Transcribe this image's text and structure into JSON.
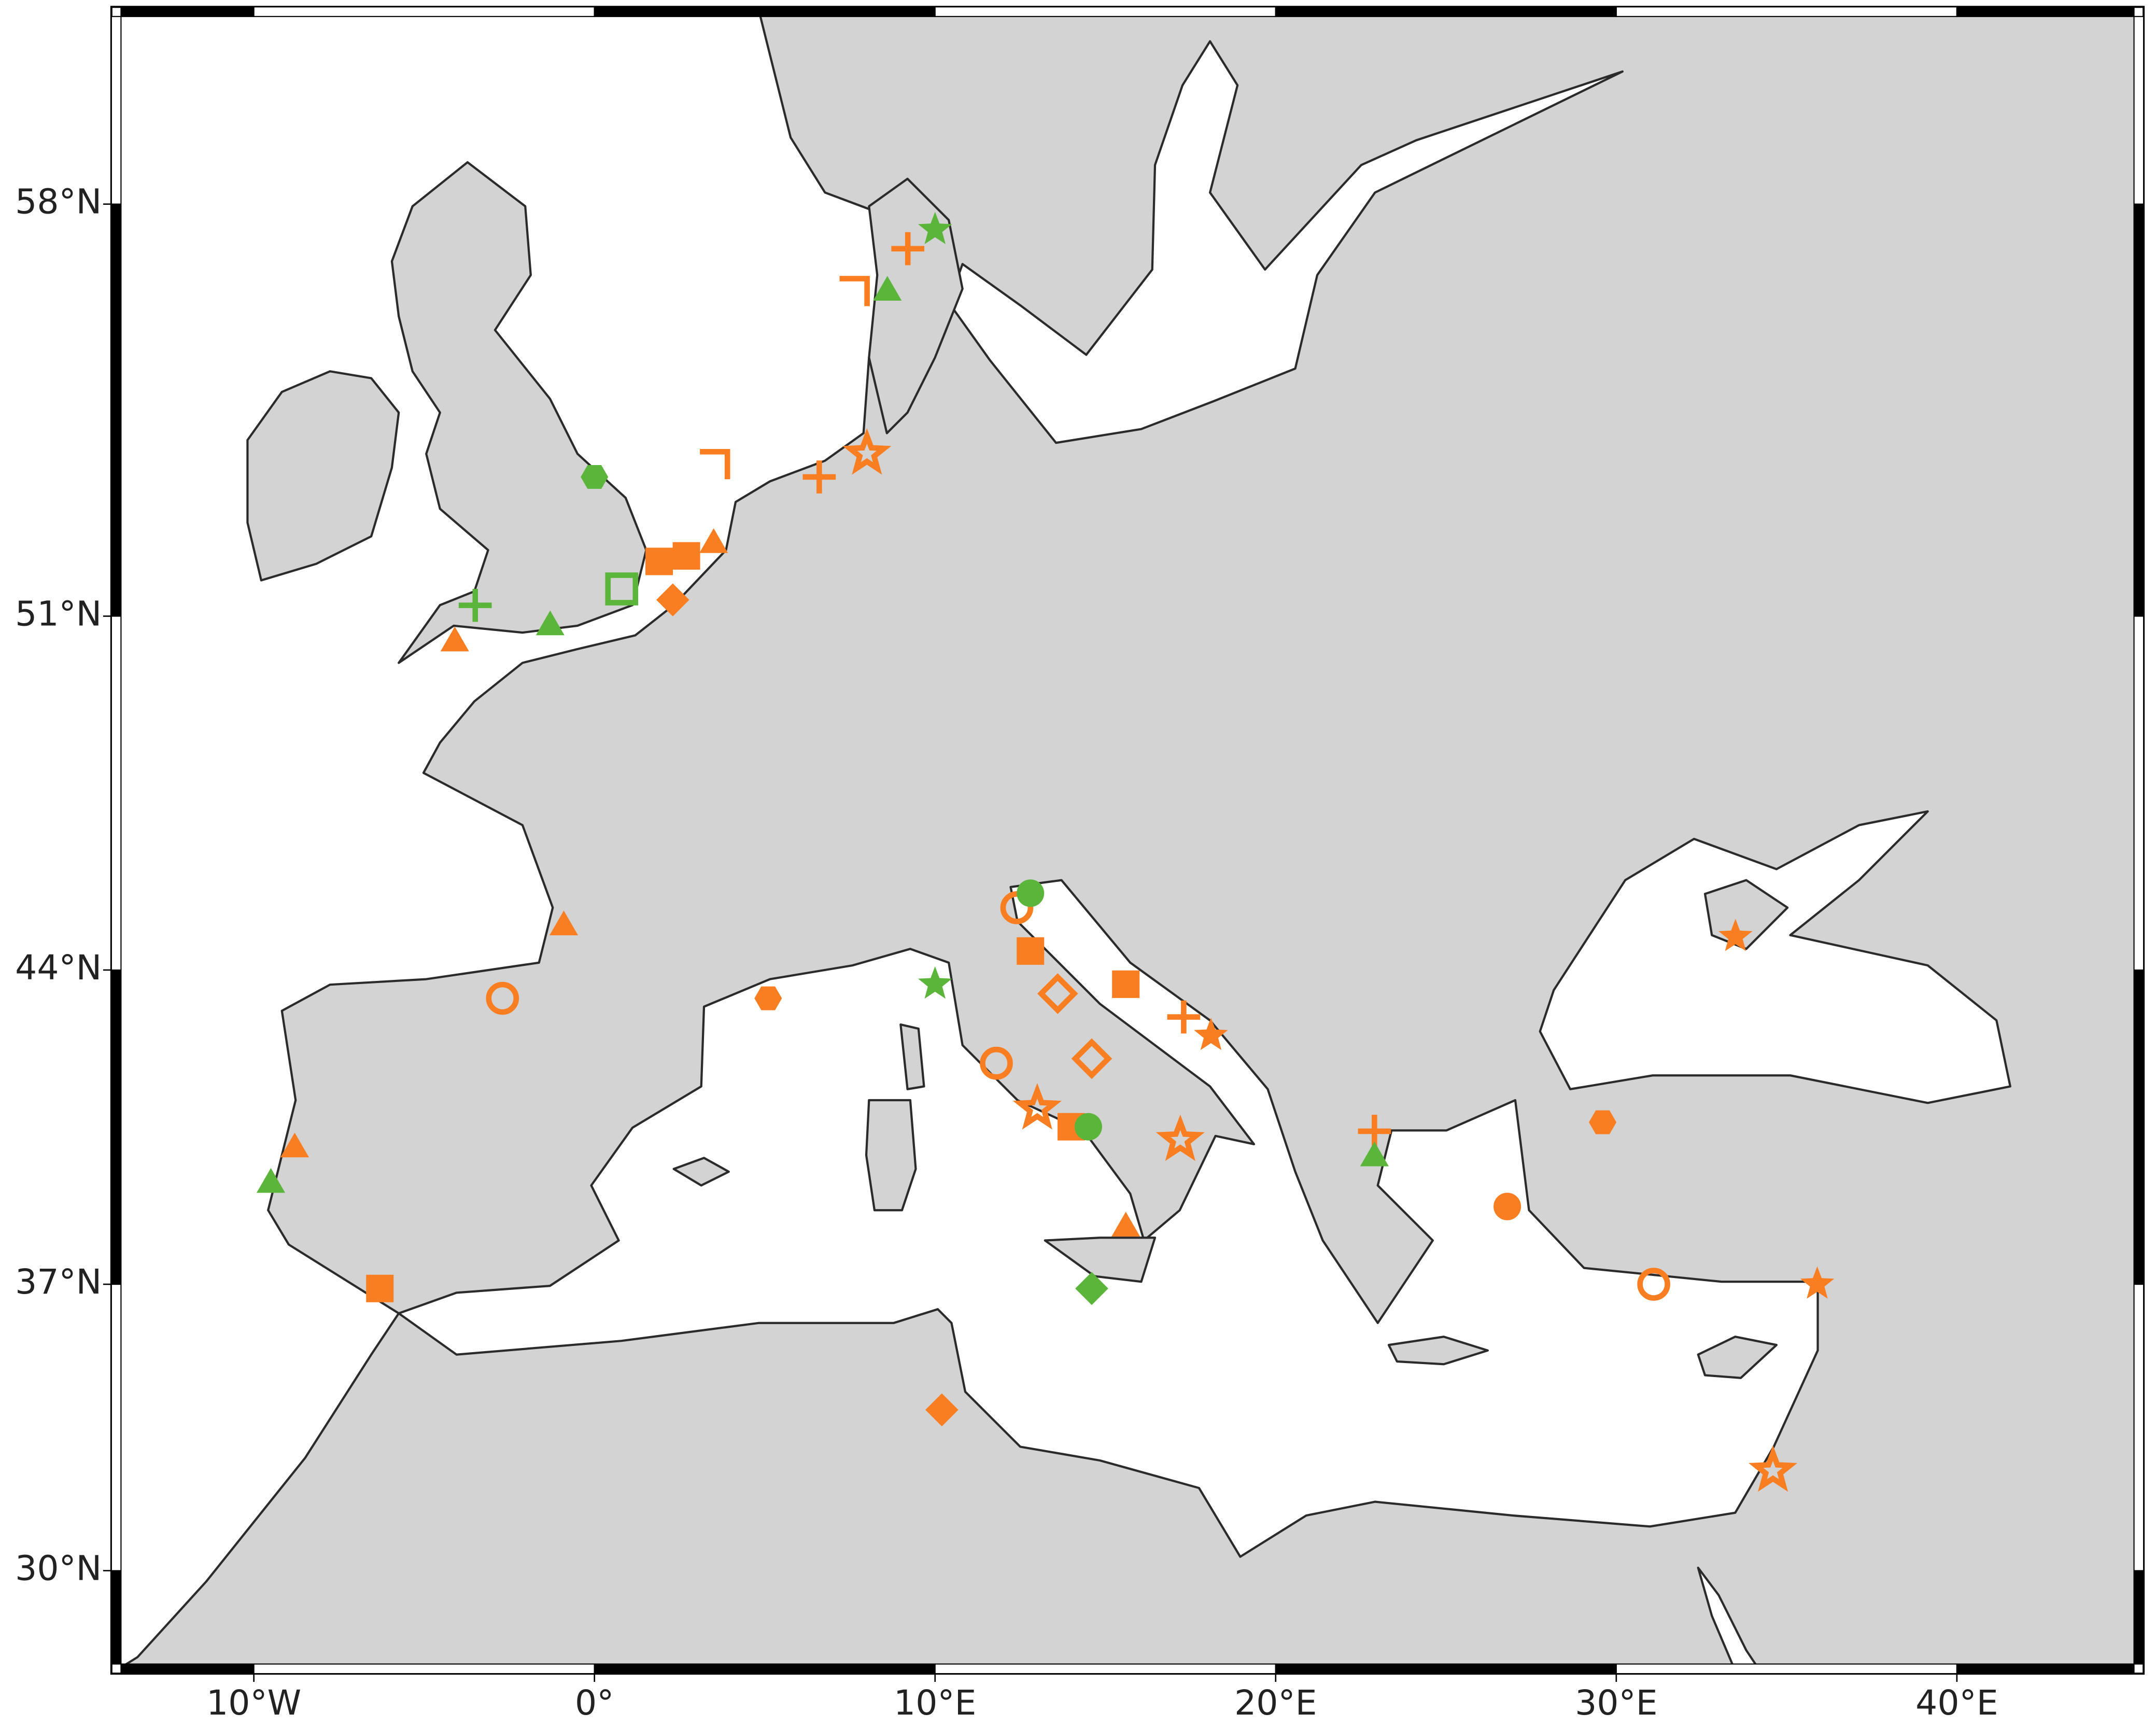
{
  "chart_data": {
    "type": "scatter",
    "projection": "mercator",
    "xlim": [
      -13.9,
      45.2
    ],
    "ylim": [
      27.6,
      60.8
    ],
    "xticks": [
      {
        "value": -10,
        "label": "10°W"
      },
      {
        "value": 0,
        "label": "0°"
      },
      {
        "value": 10,
        "label": "10°E"
      },
      {
        "value": 20,
        "label": "20°E"
      },
      {
        "value": 30,
        "label": "30°E"
      },
      {
        "value": 40,
        "label": "40°E"
      }
    ],
    "yticks": [
      {
        "value": 30,
        "label": "30°N"
      },
      {
        "value": 37,
        "label": "37°N"
      },
      {
        "value": 44,
        "label": "44°N"
      },
      {
        "value": 51,
        "label": "51°N"
      },
      {
        "value": 58,
        "label": "58°N"
      }
    ],
    "land_color": "#d3d3d3",
    "sea_color": "#ffffff",
    "series": [
      {
        "color": "#f97e22",
        "x": [
          7.6,
          9.2,
          3.5,
          6.6,
          8.0,
          2.7,
          3.5,
          1.9,
          2.3,
          -4.1,
          -0.9,
          -2.7,
          -8.8,
          -6.3,
          5.1,
          11.8,
          13.0,
          14.0,
          12.4,
          12.8,
          13.6,
          14.6,
          15.6,
          17.3,
          18.1,
          17.2,
          15.6,
          10.2,
          22.9,
          26.8,
          29.6,
          33.5,
          31.1,
          35.9,
          34.6
        ],
        "values": [
          56.6,
          57.3,
          53.7,
          53.5,
          53.9,
          52.1,
          52.3,
          52.0,
          51.3,
          50.5,
          44.9,
          43.4,
          40.1,
          36.9,
          43.4,
          42.0,
          41.0,
          40.6,
          45.3,
          44.4,
          43.5,
          42.1,
          43.7,
          43.0,
          42.6,
          40.3,
          38.3,
          34.0,
          40.5,
          38.8,
          40.7,
          44.7,
          37.0,
          37.0,
          32.5
        ],
        "markers": [
          "chevron",
          "plus",
          "chevron",
          "plus",
          "star-open",
          "square",
          "triangle",
          "square",
          "diamond",
          "triangle",
          "triangle",
          "circle-open",
          "triangle",
          "square",
          "hexagon",
          "circle-open",
          "star-open",
          "square",
          "circle-open",
          "square",
          "diamond-open",
          "diamond-open",
          "square",
          "plus",
          "star",
          "star-open",
          "triangle",
          "diamond",
          "plus",
          "circle",
          "hexagon",
          "star",
          "circle-open",
          "star",
          "star-open"
        ]
      },
      {
        "color": "#5bb53b",
        "x": [
          10.0,
          8.6,
          0.0,
          0.8,
          -3.5,
          -1.3,
          -9.5,
          10.0,
          14.5,
          14.6,
          22.9,
          12.8
        ],
        "values": [
          57.6,
          56.6,
          53.5,
          51.5,
          51.2,
          50.8,
          39.3,
          43.7,
          40.6,
          36.9,
          39.9,
          45.6
        ],
        "markers": [
          "star",
          "triangle",
          "hexagon",
          "square-open",
          "plus",
          "triangle",
          "triangle",
          "star",
          "circle",
          "diamond",
          "triangle",
          "circle"
        ]
      }
    ]
  }
}
